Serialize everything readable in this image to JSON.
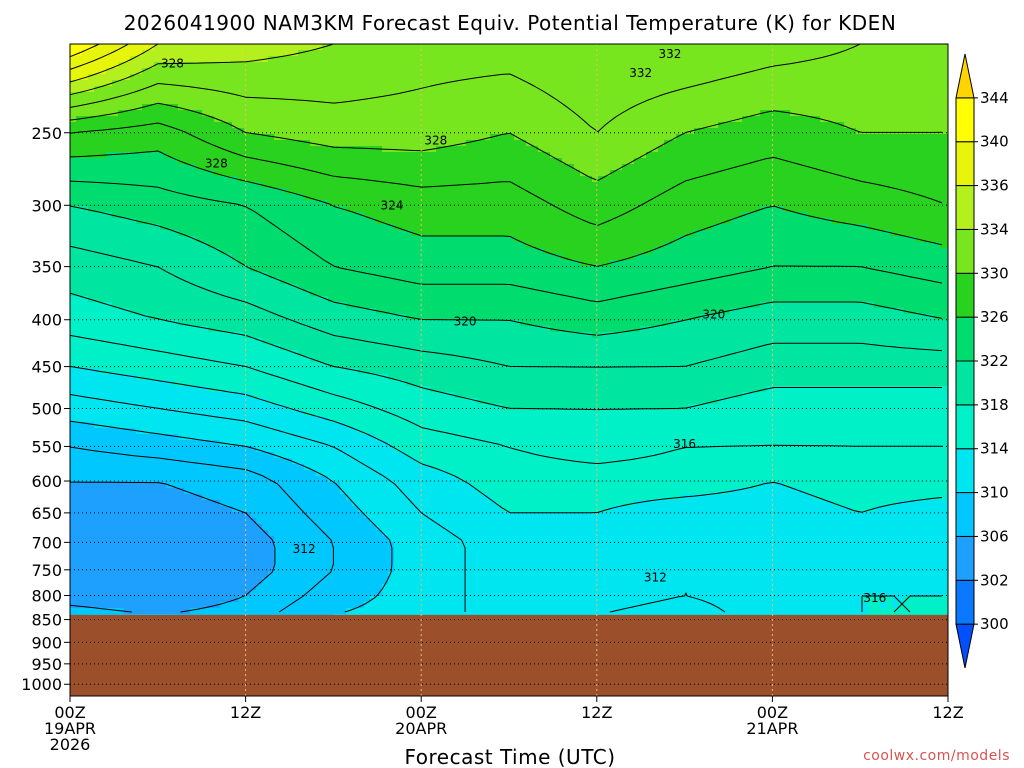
{
  "chart_data": {
    "type": "heatmap",
    "title": "2026041900 NAM3KM Forecast Equiv. Potential Temperature (K) for KDEN",
    "xlabel": "Forecast Time (UTC)",
    "ylabel": "",
    "y_scale": "log",
    "y_reversed": true,
    "ylim": [
      1030,
      200
    ],
    "y_ticks": [
      250,
      300,
      350,
      400,
      450,
      500,
      550,
      600,
      650,
      700,
      750,
      800,
      850,
      900,
      950,
      1000
    ],
    "x_ticks": [
      {
        "hour": 0,
        "lines": [
          "00Z",
          "19APR",
          "2026"
        ]
      },
      {
        "hour": 12,
        "lines": [
          "12Z"
        ]
      },
      {
        "hour": 24,
        "lines": [
          "00Z",
          "20APR"
        ]
      },
      {
        "hour": 36,
        "lines": [
          "12Z"
        ]
      },
      {
        "hour": 48,
        "lines": [
          "00Z",
          "21APR"
        ]
      },
      {
        "hour": 60,
        "lines": [
          "12Z"
        ]
      }
    ],
    "xlim": [
      0,
      60
    ],
    "surface_pressure_hpa": 840,
    "colorbar": {
      "units": "K",
      "levels": [
        300,
        302,
        306,
        310,
        314,
        318,
        322,
        326,
        330,
        334,
        336,
        340,
        344
      ],
      "labels": [
        "300",
        "302",
        "306",
        "310",
        "314",
        "318",
        "322",
        "326",
        "330",
        "334",
        "336",
        "340",
        "344"
      ],
      "colors": [
        "#0050ff",
        "#0a78ff",
        "#1ea0ff",
        "#00c8ff",
        "#00e6f0",
        "#00f0c8",
        "#00e6a0",
        "#00dc6e",
        "#28d21e",
        "#78e61e",
        "#b4f01e",
        "#e6f50a",
        "#ffff00",
        "#ffd400"
      ]
    },
    "contour_labels": [
      "332",
      "328",
      "328",
      "332",
      "328",
      "324",
      "320",
      "320",
      "316",
      "312",
      "312",
      "316"
    ],
    "field": {
      "hours": [
        0,
        6,
        12,
        18,
        24,
        30,
        36,
        42,
        48,
        54,
        60
      ],
      "pressures_hpa": [
        200,
        250,
        300,
        350,
        400,
        450,
        500,
        550,
        600,
        650,
        700,
        750,
        800,
        840
      ],
      "theta_e_k": [
        [
          342,
          336,
          335,
          334,
          333,
          333,
          334,
          334,
          333,
          332,
          331
        ],
        [
          328,
          327,
          330,
          331,
          331,
          330,
          332,
          330,
          329,
          330,
          330
        ],
        [
          322,
          323,
          324,
          326,
          327,
          327,
          329,
          327,
          326,
          327,
          328
        ],
        [
          319,
          320,
          322,
          324,
          325,
          325,
          326,
          325,
          324,
          324,
          325
        ],
        [
          317,
          318,
          319,
          321,
          322,
          322,
          323,
          322,
          321,
          321,
          322
        ],
        [
          314,
          315,
          316,
          318,
          319,
          320,
          320,
          320,
          319,
          319,
          319
        ],
        [
          311,
          312,
          313,
          315,
          317,
          318,
          318,
          318,
          317,
          317,
          317
        ],
        [
          308,
          309,
          310,
          312,
          315,
          316,
          317,
          316,
          316,
          316,
          316
        ],
        [
          306,
          306,
          307,
          310,
          313,
          315,
          315,
          315,
          314,
          315,
          315
        ],
        [
          305,
          305,
          306,
          309,
          312,
          314,
          314,
          313,
          313,
          314,
          313
        ],
        [
          305,
          305,
          305,
          308,
          311,
          313,
          313,
          313,
          313,
          313,
          313
        ],
        [
          304,
          304,
          305,
          308,
          311,
          313,
          313,
          312,
          313,
          314,
          313
        ],
        [
          305,
          304,
          306,
          309,
          311,
          313,
          313,
          312,
          313,
          314,
          314
        ],
        [
          307,
          306,
          307,
          310,
          311,
          313,
          312,
          311,
          313,
          314,
          314
        ]
      ]
    }
  },
  "credit": "coolwx.com/models",
  "colors": {
    "ground": "#9c4f2b",
    "contour": "#000000",
    "grid": "#000000",
    "credit": "#d9534f"
  }
}
